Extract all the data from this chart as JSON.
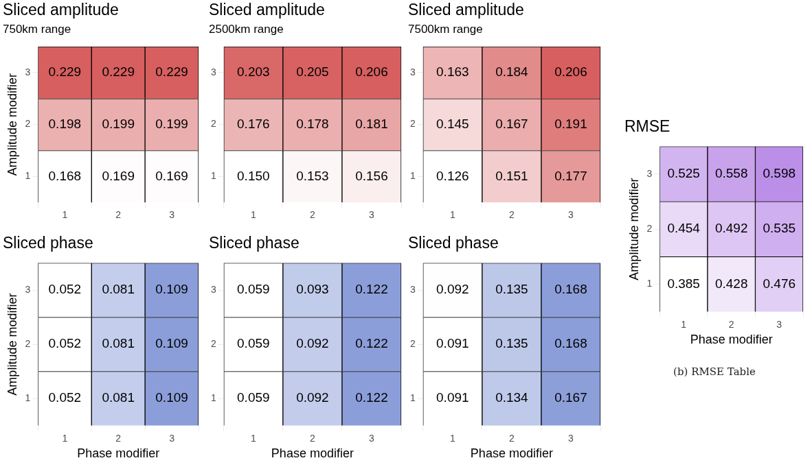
{
  "chart_data": [
    {
      "type": "heatmap",
      "title": "Sliced amplitude",
      "subtitle": "750km range",
      "ylabel": "Amplitude modifier",
      "color": "#d75f5f",
      "categories": [
        "1",
        "2",
        "3"
      ],
      "y_categories": [
        "3",
        "2",
        "1"
      ],
      "cells": [
        [
          0.229,
          0.229,
          0.229
        ],
        [
          0.198,
          0.199,
          0.199
        ],
        [
          0.168,
          0.169,
          0.169
        ]
      ],
      "data_labels": true,
      "grid": true
    },
    {
      "type": "heatmap",
      "title": "Sliced amplitude",
      "subtitle": "2500km range",
      "color": "#d75f5f",
      "categories": [
        "1",
        "2",
        "3"
      ],
      "y_categories": [
        "3",
        "2",
        "1"
      ],
      "cells": [
        [
          0.203,
          0.205,
          0.206
        ],
        [
          0.176,
          0.178,
          0.181
        ],
        [
          0.15,
          0.153,
          0.156
        ]
      ],
      "cell_labels": [
        [
          "0.203",
          "0.205",
          "0.206"
        ],
        [
          "0.176",
          "0.178",
          "0.181"
        ],
        [
          "0.150",
          "0.153",
          "0.156"
        ]
      ],
      "data_labels": true,
      "grid": true
    },
    {
      "type": "heatmap",
      "title": "Sliced amplitude",
      "subtitle": "7500km range",
      "color": "#d75f5f",
      "categories": [
        "1",
        "2",
        "3"
      ],
      "y_categories": [
        "3",
        "2",
        "1"
      ],
      "cells": [
        [
          0.163,
          0.184,
          0.206
        ],
        [
          0.145,
          0.167,
          0.191
        ],
        [
          0.126,
          0.151,
          0.177
        ]
      ],
      "data_labels": true,
      "grid": true
    },
    {
      "type": "heatmap",
      "title": "Sliced phase",
      "xlabel": "Phase modifier",
      "ylabel": "Amplitude modifier",
      "color": "#8c9ed9",
      "categories": [
        "1",
        "2",
        "3"
      ],
      "y_categories": [
        "3",
        "2",
        "1"
      ],
      "cells": [
        [
          0.052,
          0.081,
          0.109
        ],
        [
          0.052,
          0.081,
          0.109
        ],
        [
          0.052,
          0.081,
          0.109
        ]
      ],
      "data_labels": true,
      "grid": true
    },
    {
      "type": "heatmap",
      "title": "Sliced phase",
      "xlabel": "Phase modifier",
      "color": "#8c9ed9",
      "categories": [
        "1",
        "2",
        "3"
      ],
      "y_categories": [
        "3",
        "2",
        "1"
      ],
      "cells": [
        [
          0.059,
          0.093,
          0.122
        ],
        [
          0.059,
          0.092,
          0.122
        ],
        [
          0.059,
          0.092,
          0.122
        ]
      ],
      "data_labels": true,
      "grid": true
    },
    {
      "type": "heatmap",
      "title": "Sliced phase",
      "xlabel": "Phase modifier",
      "color": "#8c9ed9",
      "categories": [
        "1",
        "2",
        "3"
      ],
      "y_categories": [
        "3",
        "2",
        "1"
      ],
      "cells": [
        [
          0.092,
          0.135,
          0.168
        ],
        [
          0.091,
          0.135,
          0.168
        ],
        [
          0.091,
          0.134,
          0.167
        ]
      ],
      "data_labels": true,
      "grid": true
    },
    {
      "type": "heatmap",
      "title": "RMSE",
      "xlabel": "Phase modifier",
      "ylabel": "Amplitude modifier",
      "color": "#bb8ee8",
      "categories": [
        "1",
        "2",
        "3"
      ],
      "y_categories": [
        "3",
        "2",
        "1"
      ],
      "cells": [
        [
          0.525,
          0.558,
          0.598
        ],
        [
          0.454,
          0.492,
          0.535
        ],
        [
          0.385,
          0.428,
          0.476
        ]
      ],
      "data_labels": true,
      "grid": true,
      "annotations": [
        "(b) RMSE Table"
      ]
    }
  ]
}
